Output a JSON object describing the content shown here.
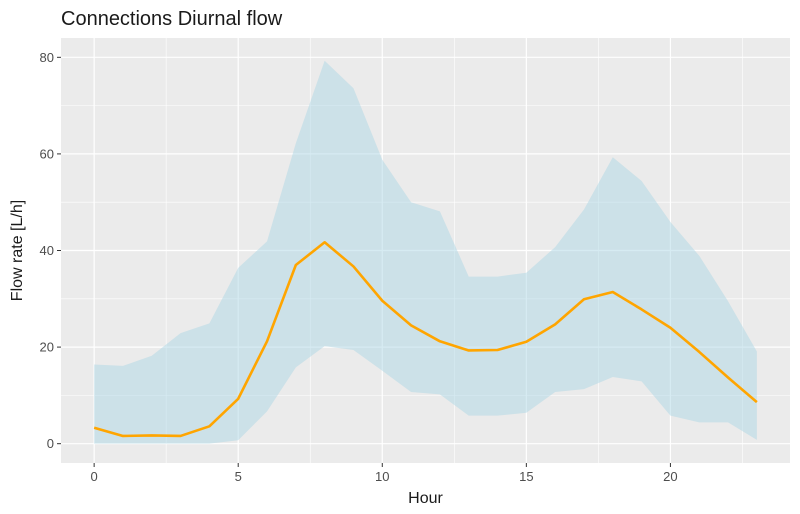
{
  "chart_data": {
    "type": "line",
    "title": "Connections Diurnal flow",
    "xlabel": "Hour",
    "ylabel": "Flow rate [L/h]",
    "xlim": [
      -1.15,
      24.15
    ],
    "ylim": [
      -4,
      84
    ],
    "x_ticks": [
      0,
      5,
      10,
      15,
      20
    ],
    "y_ticks": [
      0,
      20,
      40,
      60,
      80
    ],
    "x": [
      0,
      1,
      2,
      3,
      4,
      5,
      6,
      7,
      8,
      9,
      10,
      11,
      12,
      13,
      14,
      15,
      16,
      17,
      18,
      19,
      20,
      21,
      22,
      23
    ],
    "series": [
      {
        "values": [
          3.3,
          1.6,
          1.7,
          1.6,
          3.6,
          9.3,
          21.2,
          37.0,
          41.7,
          36.7,
          29.6,
          24.5,
          21.2,
          19.3,
          19.4,
          21.1,
          24.7,
          29.9,
          31.4,
          27.8,
          24.0,
          19.0,
          13.7,
          8.6
        ],
        "color": "#FFA500"
      }
    ],
    "band": {
      "lower": [
        0.0,
        0.0,
        0.0,
        0.0,
        0.0,
        0.7,
        6.7,
        15.8,
        20.2,
        19.4,
        15.1,
        10.7,
        10.2,
        5.8,
        5.8,
        6.4,
        10.7,
        11.3,
        13.8,
        12.9,
        5.8,
        4.4,
        4.4,
        0.8
      ],
      "upper": [
        16.4,
        16.1,
        18.2,
        22.9,
        24.9,
        36.4,
        41.9,
        62.2,
        79.3,
        73.6,
        58.8,
        50.0,
        48.1,
        34.6,
        34.6,
        35.4,
        40.7,
        48.5,
        59.3,
        54.4,
        45.9,
        38.9,
        29.5,
        19.1
      ],
      "color": "#ADD8E6"
    },
    "grid": true,
    "panel_background": "#EBEBEB",
    "legend": "none"
  }
}
